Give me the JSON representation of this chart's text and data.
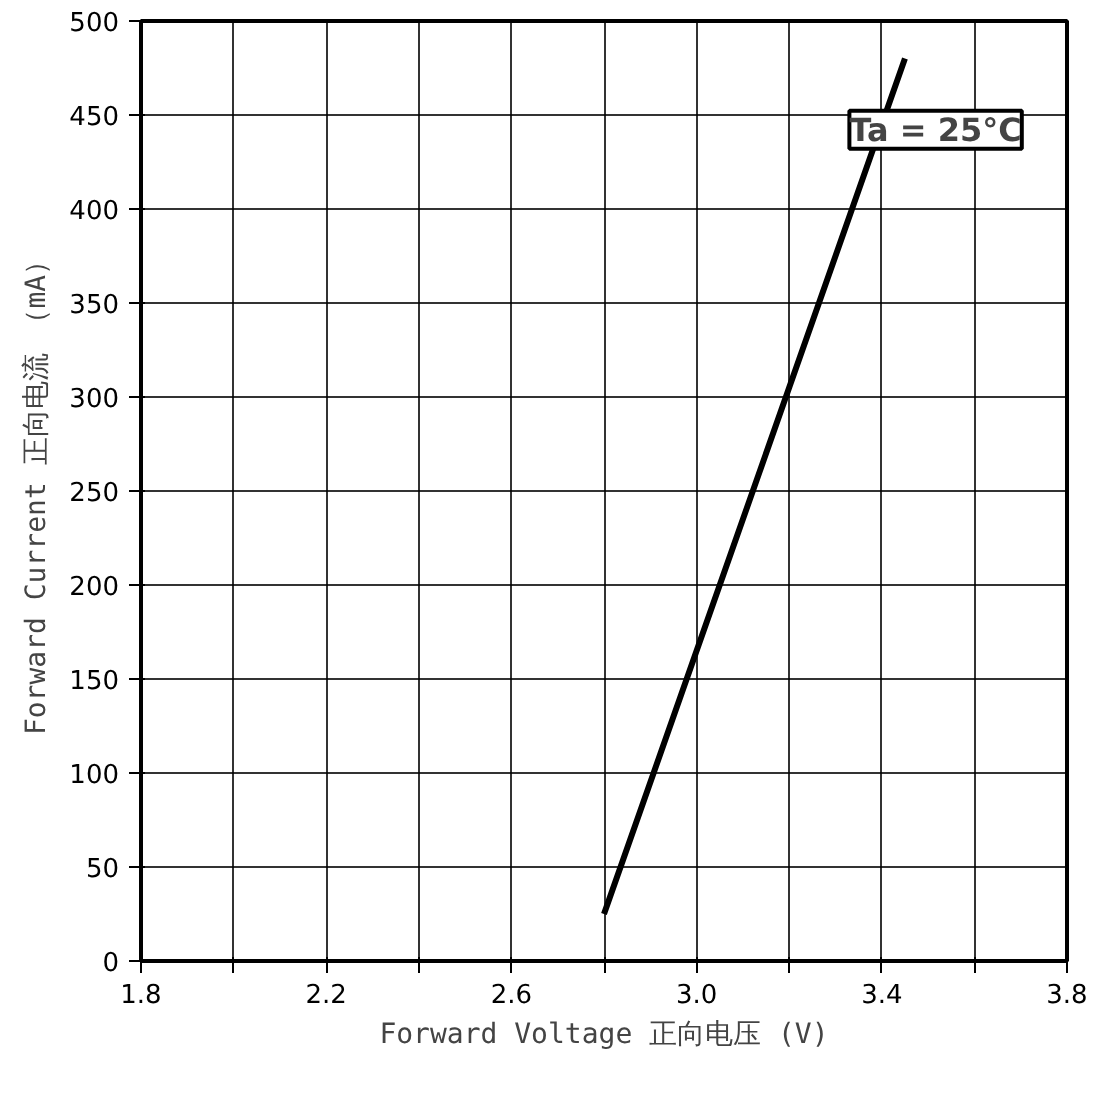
{
  "chart_data": {
    "type": "line",
    "xlabel": "Forward Voltage 正向电压 (V)",
    "ylabel": "Forward Current 正向电流 （mA）",
    "annotations": [
      "Ta = 25°C"
    ],
    "series": [
      {
        "color": "#000000",
        "x": [
          2.8,
          3.0,
          3.2,
          3.45
        ],
        "values": [
          25,
          165,
          305,
          480
        ]
      }
    ],
    "xlim": [
      1.8,
      3.8
    ],
    "xticks": [
      1.8,
      {
        "value": 2.0,
        "label": null
      },
      2.2,
      {
        "value": 2.4,
        "label": null
      },
      2.6,
      {
        "value": 2.8,
        "label": null
      },
      {
        "value": 3.0,
        "label": "3.0"
      },
      {
        "value": 3.2,
        "label": null
      },
      3.4,
      {
        "value": 3.6,
        "label": null
      },
      3.8
    ],
    "ylim": [
      0,
      500
    ],
    "yticks": [
      0,
      50,
      100,
      150,
      200,
      250,
      300,
      350,
      400,
      450,
      500
    ],
    "grid": true,
    "marker": "none",
    "line_style": "solid"
  }
}
